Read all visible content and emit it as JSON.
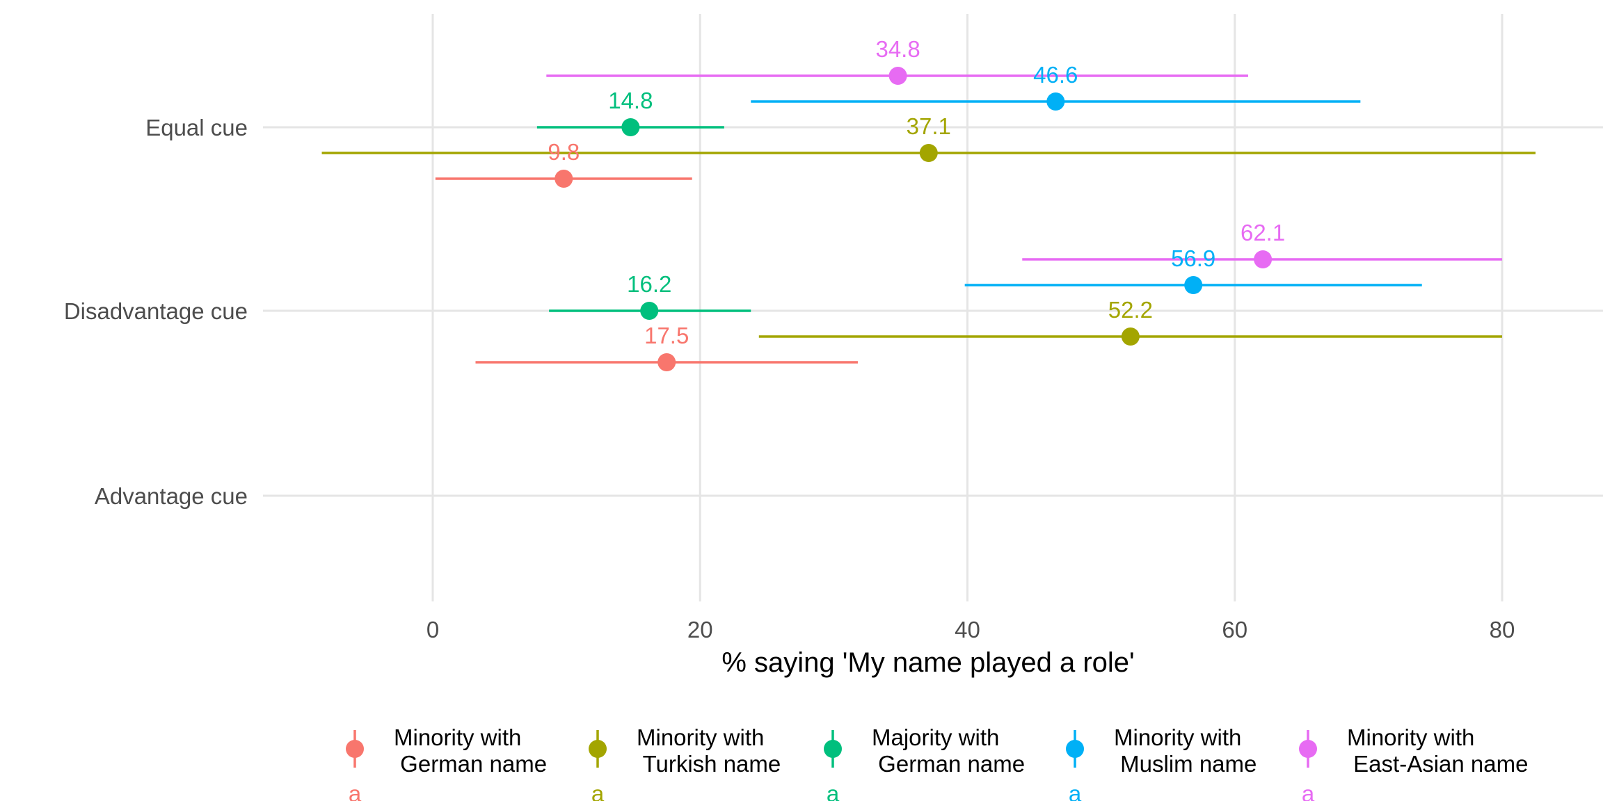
{
  "chart_data": {
    "type": "dot-errorbar",
    "xlabel": "% saying 'My name played a role'",
    "ylabel": "",
    "xlim": [
      -13,
      85
    ],
    "x_ticks": [
      0,
      20,
      40,
      60,
      80
    ],
    "categories": [
      "Equal cue",
      "Disadvantage cue",
      "Advantage cue"
    ],
    "grid": true,
    "legend_position": "bottom",
    "series": [
      {
        "name": "Minority with\n German name",
        "color": "#F8766D",
        "points": [
          {
            "category": "Equal cue",
            "value": 9.8,
            "label": "9.8",
            "ci": [
              0.2,
              19.4
            ]
          },
          {
            "category": "Disadvantage cue",
            "value": 17.5,
            "label": "17.5",
            "ci": [
              3.2,
              31.8
            ]
          }
        ]
      },
      {
        "name": "Minority with\n Turkish name",
        "color": "#A3A500",
        "points": [
          {
            "category": "Equal cue",
            "value": 37.1,
            "label": "37.1",
            "ci": [
              -8.3,
              82.5
            ]
          },
          {
            "category": "Disadvantage cue",
            "value": 52.2,
            "label": "52.2",
            "ci": [
              24.4,
              80.0
            ]
          }
        ]
      },
      {
        "name": "Majority with\n German name",
        "color": "#00BF7D",
        "points": [
          {
            "category": "Equal cue",
            "value": 14.8,
            "label": "14.8",
            "ci": [
              7.8,
              21.8
            ]
          },
          {
            "category": "Disadvantage cue",
            "value": 16.2,
            "label": "16.2",
            "ci": [
              8.7,
              23.8
            ]
          }
        ]
      },
      {
        "name": "Minority with\n Muslim name",
        "color": "#00B0F6",
        "points": [
          {
            "category": "Equal cue",
            "value": 46.6,
            "label": "46.6",
            "ci": [
              23.8,
              69.4
            ]
          },
          {
            "category": "Disadvantage cue",
            "value": 56.9,
            "label": "56.9",
            "ci": [
              39.8,
              74.0
            ]
          }
        ]
      },
      {
        "name": "Minority with\n East-Asian name",
        "color": "#E76BF3",
        "points": [
          {
            "category": "Equal cue",
            "value": 34.8,
            "label": "34.8",
            "ci": [
              8.5,
              61.0
            ]
          },
          {
            "category": "Disadvantage cue",
            "value": 62.1,
            "label": "62.1",
            "ci": [
              44.1,
              80.0
            ]
          }
        ]
      }
    ],
    "legend_key_letters": [
      "a",
      "a",
      "a",
      "a",
      "a"
    ]
  }
}
